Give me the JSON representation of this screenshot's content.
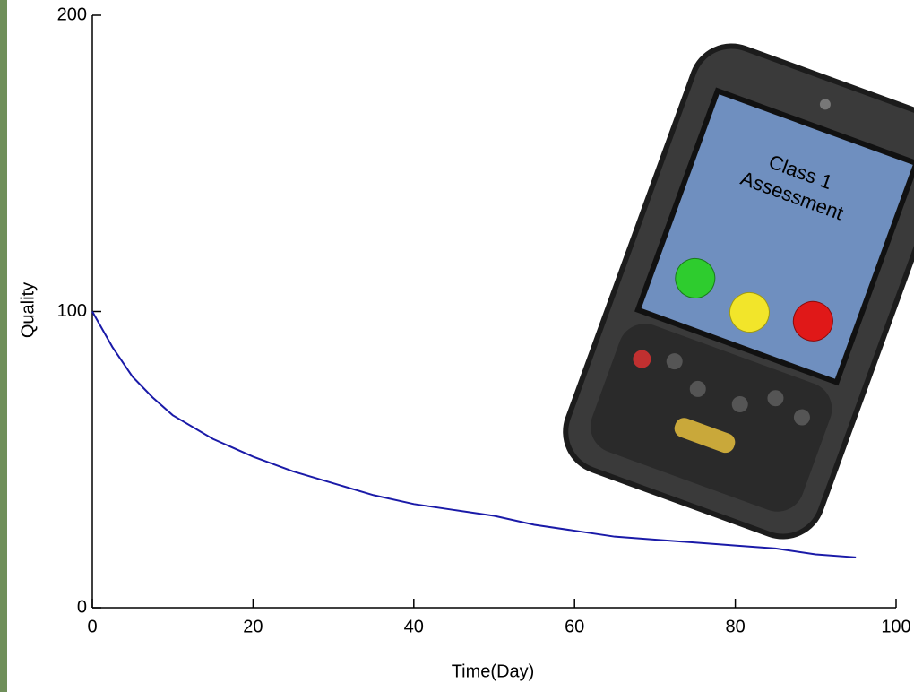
{
  "chart_data": {
    "type": "line",
    "x_label": "Time(Day)",
    "y_label": "Quality",
    "x": [
      0,
      2.5,
      5,
      7.5,
      10,
      15,
      20,
      25,
      30,
      35,
      40,
      45,
      50,
      55,
      60,
      65,
      70,
      75,
      80,
      85,
      90,
      95
    ],
    "series": [
      {
        "color": "#1a1aa8",
        "values": [
          100,
          88,
          78,
          71,
          65,
          57,
          51,
          46,
          42,
          38,
          35,
          33,
          31,
          28,
          26,
          24,
          23,
          22,
          21,
          20,
          18,
          17
        ]
      }
    ],
    "xlim": [
      0,
      100
    ],
    "xticks": [
      0,
      20,
      40,
      60,
      80,
      100
    ],
    "ylim": [
      0,
      200
    ],
    "yticks": [
      0,
      100,
      200
    ],
    "annotations": [
      "Class 1",
      "Assessment"
    ]
  }
}
